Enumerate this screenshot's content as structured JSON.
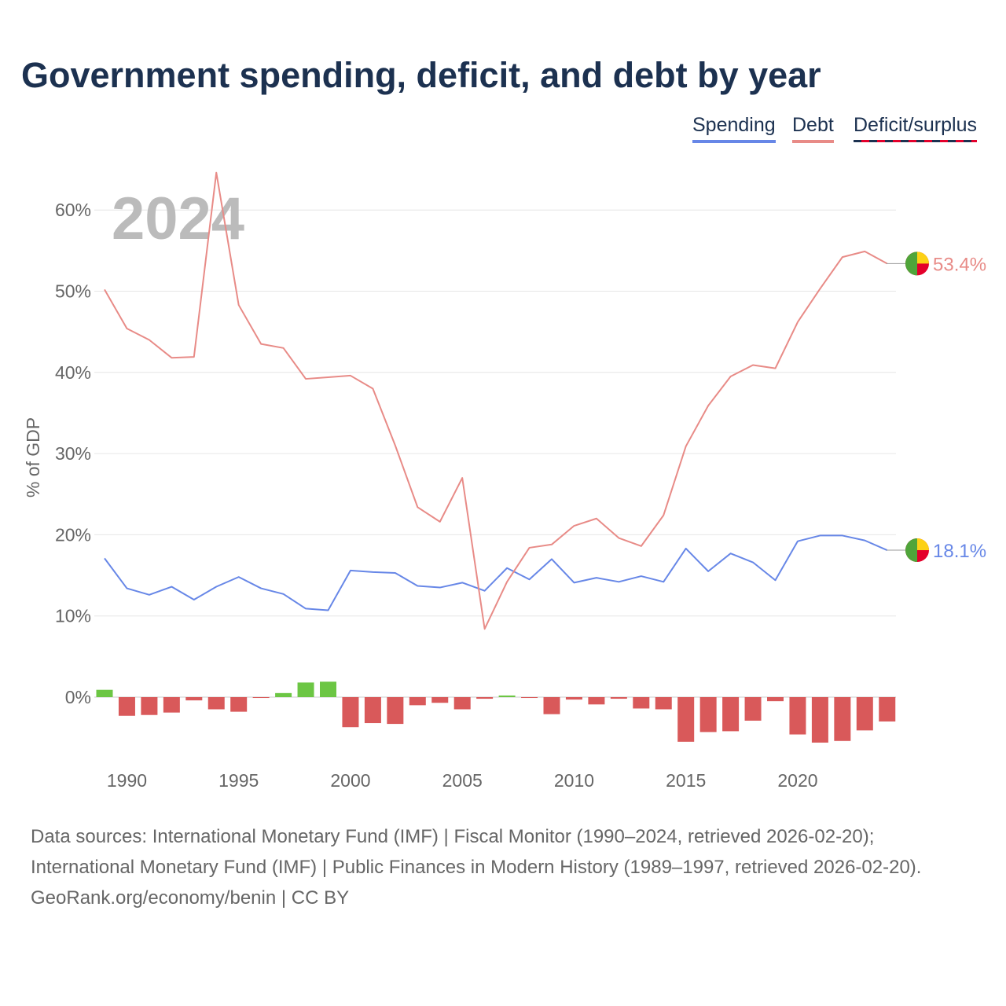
{
  "title": "Government spending, deficit, and debt by year",
  "legend": {
    "spending": "Spending",
    "debt": "Debt",
    "deficit": "Deficit/surplus"
  },
  "colors": {
    "spending": "#6787e7",
    "debt": "#e88b87",
    "surplus": "#6cc644",
    "deficit": "#d9595a",
    "title": "#1c3150"
  },
  "chart_data": {
    "type": "line",
    "title": "Government spending, deficit, and debt by year",
    "ylabel": "% of GDP",
    "xlabel": "",
    "ylim": [
      -6,
      65
    ],
    "yticks": [
      0,
      10,
      20,
      30,
      40,
      50,
      60
    ],
    "ytick_labels": [
      "0%",
      "10%",
      "20%",
      "30%",
      "40%",
      "50%",
      "60%"
    ],
    "xticks": [
      1990,
      1995,
      2000,
      2005,
      2010,
      2015,
      2020
    ],
    "xtick_labels": [
      "1990",
      "1995",
      "2000",
      "2005",
      "2010",
      "2015",
      "2020"
    ],
    "year_watermark": "2024",
    "x": [
      1989,
      1990,
      1991,
      1992,
      1993,
      1994,
      1995,
      1996,
      1997,
      1998,
      1999,
      2000,
      2001,
      2002,
      2003,
      2004,
      2005,
      2006,
      2007,
      2008,
      2009,
      2010,
      2011,
      2012,
      2013,
      2014,
      2015,
      2016,
      2017,
      2018,
      2019,
      2020,
      2021,
      2022,
      2023,
      2024
    ],
    "series": [
      {
        "name": "Spending",
        "type": "line",
        "end_label": "18.1%",
        "values": [
          17.1,
          13.4,
          12.6,
          13.6,
          12.0,
          13.6,
          14.8,
          13.4,
          12.7,
          10.9,
          10.7,
          15.6,
          15.4,
          15.3,
          13.7,
          13.5,
          14.1,
          13.1,
          15.9,
          14.5,
          17.0,
          14.1,
          14.7,
          14.2,
          14.9,
          14.2,
          18.3,
          15.5,
          17.7,
          16.6,
          14.4,
          19.2,
          19.9,
          19.9,
          19.3,
          18.1
        ]
      },
      {
        "name": "Debt",
        "type": "line",
        "end_label": "53.4%",
        "values": [
          50.2,
          45.4,
          44.0,
          41.8,
          41.9,
          64.6,
          48.3,
          43.5,
          43.0,
          39.2,
          39.4,
          39.6,
          38.0,
          31.0,
          23.4,
          21.6,
          27.0,
          8.4,
          14.2,
          18.4,
          18.8,
          21.1,
          22.0,
          19.6,
          18.6,
          22.4,
          30.9,
          35.9,
          39.5,
          40.9,
          40.5,
          46.2,
          50.3,
          54.2,
          54.9,
          53.4
        ]
      },
      {
        "name": "Deficit/surplus",
        "type": "bar",
        "values": [
          0.9,
          -2.3,
          -2.2,
          -1.9,
          -0.4,
          -1.5,
          -1.8,
          -0.1,
          0.5,
          1.8,
          1.9,
          -3.7,
          -3.2,
          -3.3,
          -1.0,
          -0.7,
          -1.5,
          -0.2,
          0.2,
          -0.1,
          -2.1,
          -0.3,
          -0.9,
          -0.2,
          -1.4,
          -1.5,
          -5.5,
          -4.3,
          -4.2,
          -2.9,
          -0.5,
          -4.6,
          -5.6,
          -5.4,
          -4.1,
          -3.0
        ]
      }
    ]
  },
  "footer": {
    "sources": "Data sources: International Monetary Fund (IMF) | Fiscal Monitor (1990–2024, retrieved 2026-02-20); International Monetary Fund (IMF) | Public Finances in Modern History (1989–1997, retrieved 2026-02-20).",
    "attribution": "GeoRank.org/economy/benin | CC BY"
  }
}
